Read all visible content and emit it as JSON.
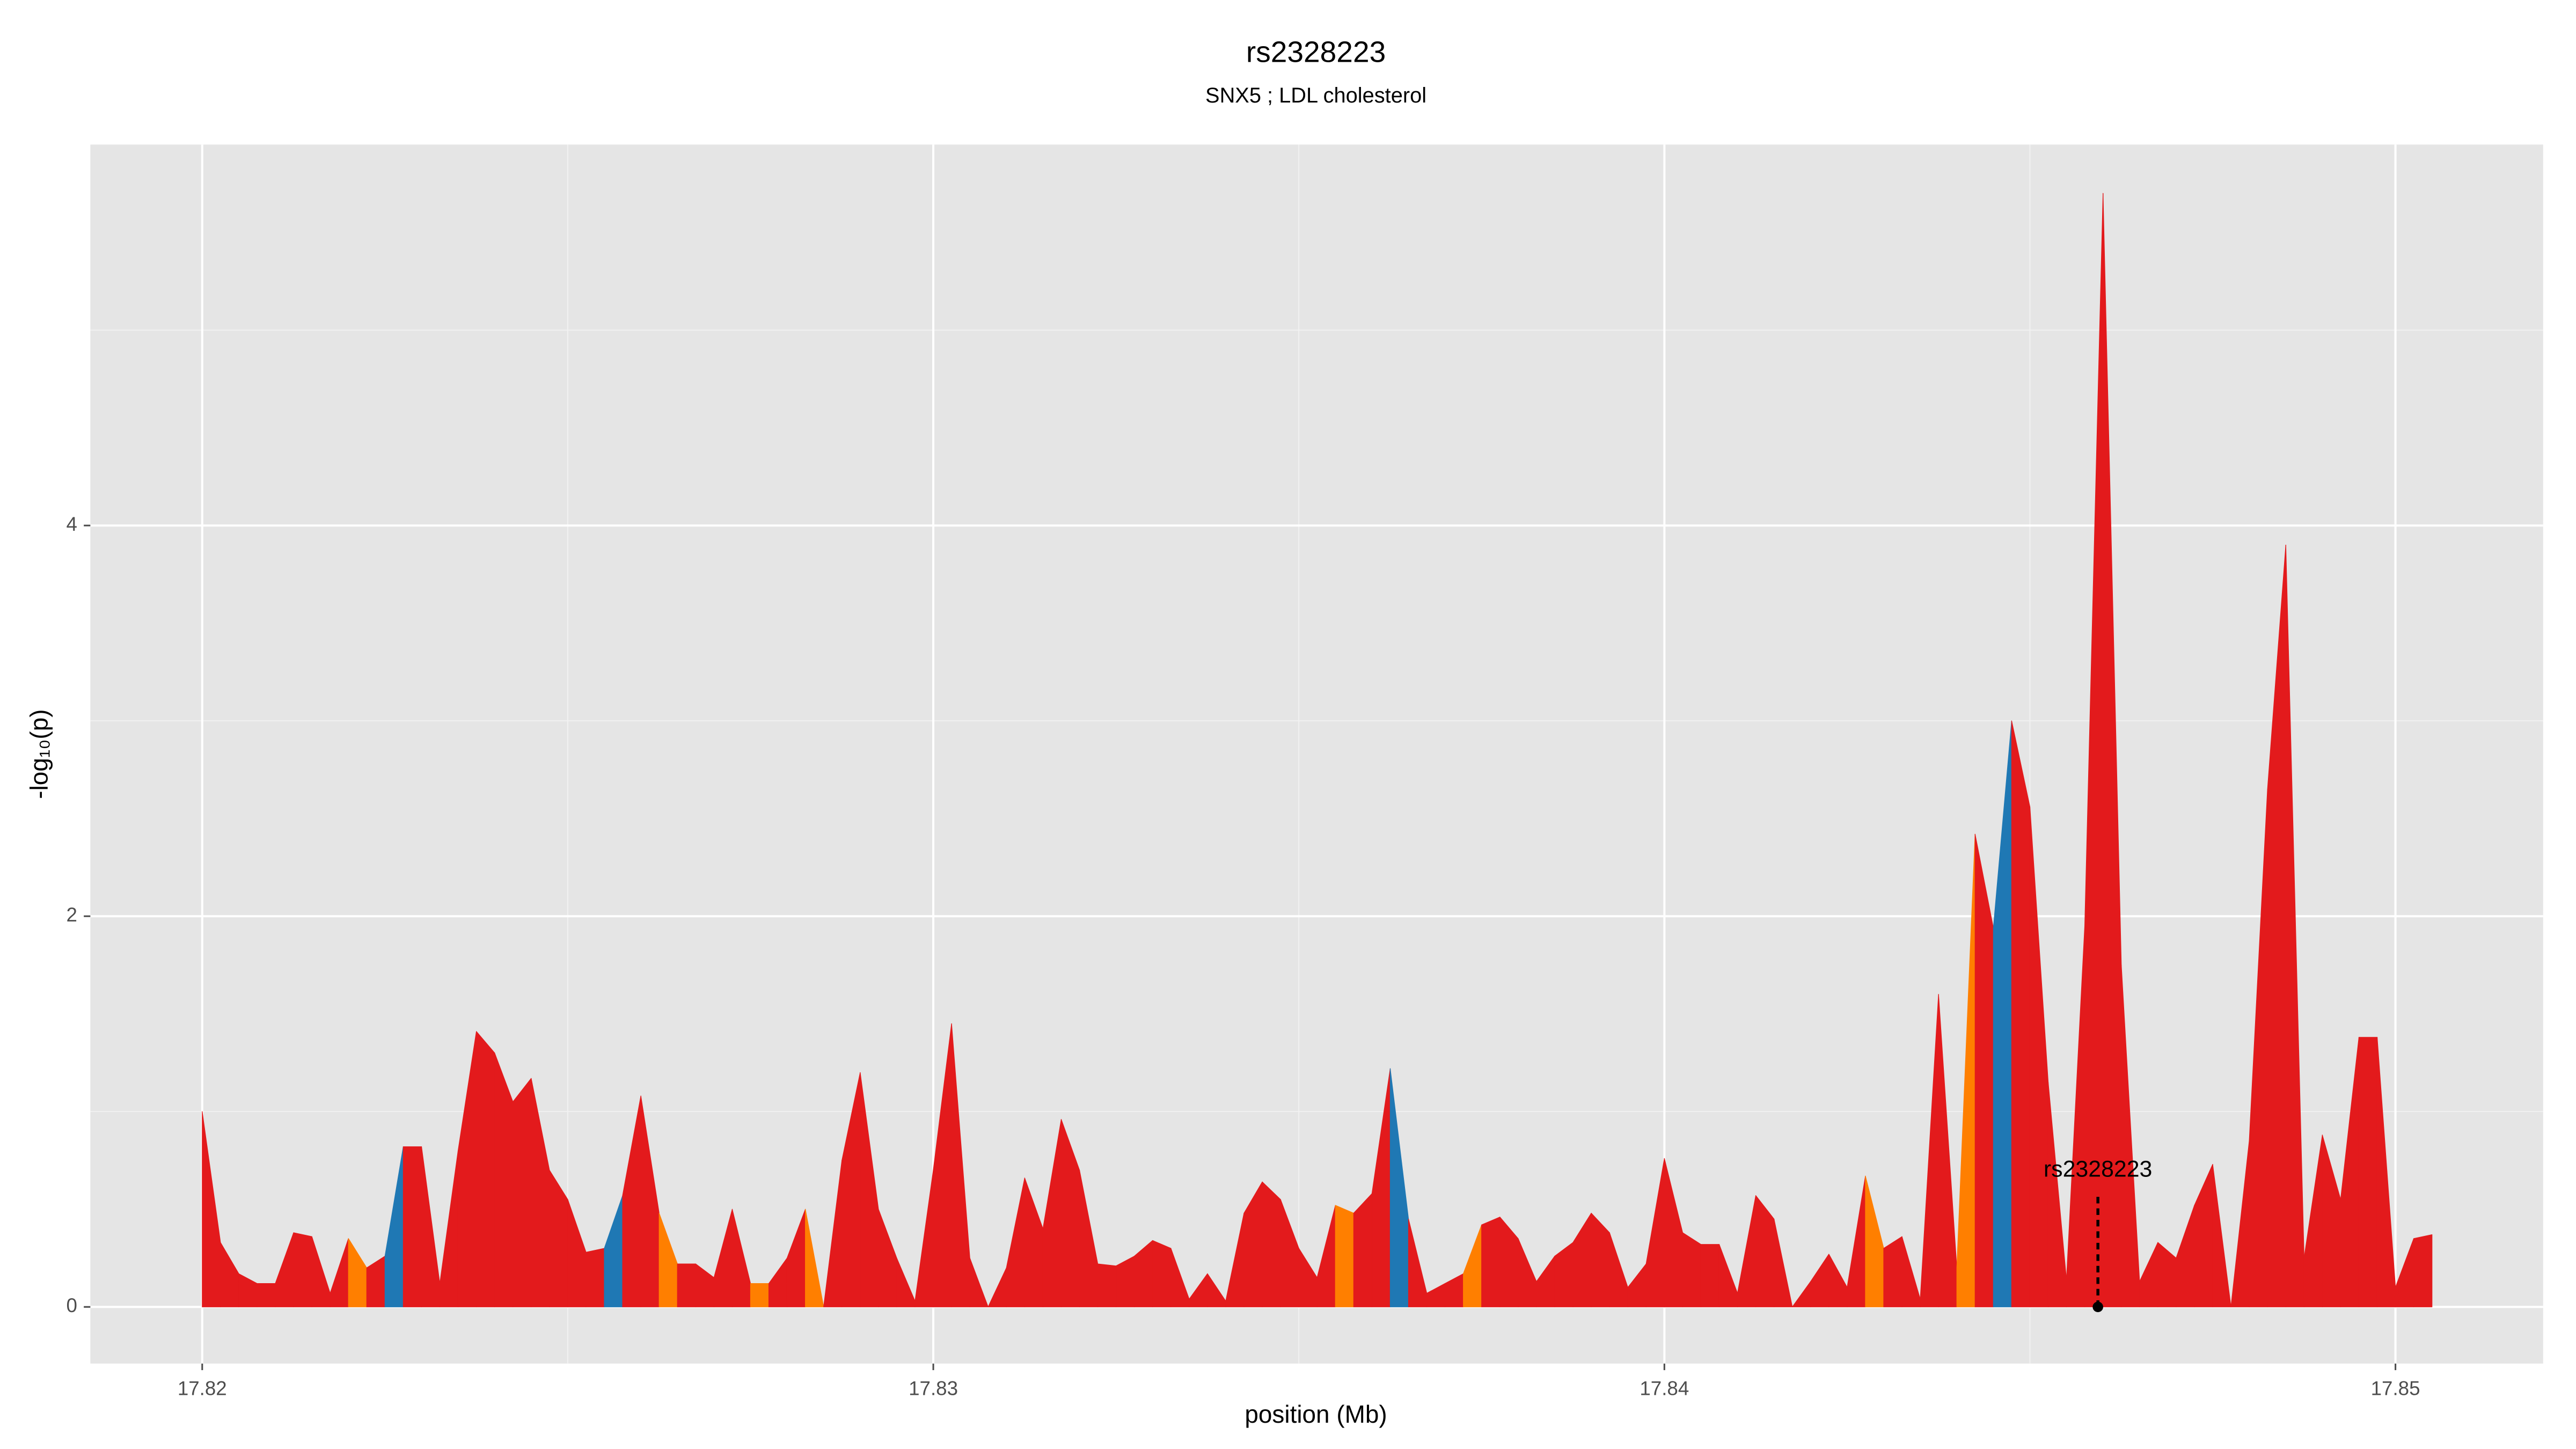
{
  "chart_data": {
    "type": "area",
    "title": "rs2328223",
    "subtitle": "SNX5 ; LDL cholesterol",
    "x_label": "position (Mb)",
    "y_label": "-log₁₀(p)",
    "xlim": [
      17.81847,
      17.85202
    ],
    "ylim": [
      -0.29,
      5.95
    ],
    "xticks": [
      17.82,
      17.83,
      17.84,
      17.85
    ],
    "yticks": [
      0,
      2,
      4
    ],
    "x_minor_grid": [
      17.825,
      17.835,
      17.845
    ],
    "y_minor_grid": [
      1,
      3,
      5
    ],
    "grid": true,
    "x": [
      17.82,
      17.82025,
      17.8205,
      17.82075,
      17.821,
      17.82125,
      17.8215,
      17.82175,
      17.822,
      17.82225,
      17.8225,
      17.82275,
      17.823,
      17.82325,
      17.8235,
      17.82375,
      17.824,
      17.82425,
      17.8245,
      17.82475,
      17.825,
      17.82525,
      17.8255,
      17.82575,
      17.826,
      17.82625,
      17.8265,
      17.82675,
      17.827,
      17.82725,
      17.8275,
      17.82775,
      17.828,
      17.82825,
      17.8285,
      17.82875,
      17.829,
      17.82925,
      17.8295,
      17.82975,
      17.83,
      17.83025,
      17.8305,
      17.83075,
      17.831,
      17.83125,
      17.8315,
      17.83175,
      17.832,
      17.83225,
      17.8325,
      17.83275,
      17.833,
      17.83325,
      17.8335,
      17.83375,
      17.834,
      17.83425,
      17.8345,
      17.83475,
      17.835,
      17.83525,
      17.8355,
      17.83575,
      17.836,
      17.83625,
      17.8365,
      17.83675,
      17.837,
      17.83725,
      17.8375,
      17.83775,
      17.838,
      17.83825,
      17.8385,
      17.83875,
      17.839,
      17.83925,
      17.8395,
      17.83975,
      17.84,
      17.84025,
      17.8405,
      17.84075,
      17.841,
      17.84125,
      17.8415,
      17.84175,
      17.842,
      17.84225,
      17.8425,
      17.84275,
      17.843,
      17.84325,
      17.8435,
      17.84375,
      17.844,
      17.84425,
      17.8445,
      17.84475,
      17.845,
      17.84525,
      17.8455,
      17.84575,
      17.846,
      17.84625,
      17.8465,
      17.84675,
      17.847,
      17.84725,
      17.8475,
      17.84775,
      17.848,
      17.84825,
      17.8485,
      17.84875,
      17.849,
      17.84925,
      17.8495,
      17.84975,
      17.85,
      17.85025,
      17.8505
    ],
    "values": [
      1.0,
      0.33,
      0.17,
      0.12,
      0.12,
      0.38,
      0.36,
      0.07,
      0.35,
      0.2,
      0.26,
      0.82,
      0.82,
      0.12,
      0.8,
      1.41,
      1.3,
      1.05,
      1.17,
      0.7,
      0.55,
      0.28,
      0.3,
      0.57,
      1.08,
      0.48,
      0.22,
      0.22,
      0.15,
      0.5,
      0.12,
      0.12,
      0.25,
      0.5,
      0.0,
      0.75,
      1.2,
      0.5,
      0.25,
      0.03,
      0.7,
      1.45,
      0.25,
      0.0,
      0.2,
      0.66,
      0.4,
      0.96,
      0.7,
      0.22,
      0.21,
      0.26,
      0.34,
      0.3,
      0.04,
      0.17,
      0.03,
      0.48,
      0.64,
      0.55,
      0.3,
      0.15,
      0.52,
      0.48,
      0.58,
      1.22,
      0.45,
      0.07,
      0.12,
      0.17,
      0.42,
      0.46,
      0.35,
      0.13,
      0.26,
      0.33,
      0.48,
      0.38,
      0.1,
      0.22,
      0.76,
      0.38,
      0.32,
      0.32,
      0.07,
      0.57,
      0.45,
      0.0,
      0.13,
      0.27,
      0.1,
      0.67,
      0.3,
      0.36,
      0.04,
      1.6,
      0.2,
      2.42,
      1.94,
      3.0,
      2.56,
      1.15,
      0.14,
      1.95,
      5.7,
      1.75,
      0.13,
      0.33,
      0.25,
      0.52,
      0.73,
      0.0,
      0.85,
      2.65,
      3.9,
      0.25,
      0.88,
      0.55,
      1.38,
      1.38,
      0.1,
      0.35,
      0.37
    ],
    "colors": [
      "#e31a1c",
      "#e31a1c",
      "#e31a1c",
      "#e31a1c",
      "#e31a1c",
      "#e31a1c",
      "#e31a1c",
      "#e31a1c",
      "#ff7f00",
      "#e31a1c",
      "#1f78b4",
      "#e31a1c",
      "#e31a1c",
      "#e31a1c",
      "#e31a1c",
      "#e31a1c",
      "#e31a1c",
      "#e31a1c",
      "#e31a1c",
      "#e31a1c",
      "#e31a1c",
      "#e31a1c",
      "#1f78b4",
      "#e31a1c",
      "#e31a1c",
      "#ff7f00",
      "#e31a1c",
      "#e31a1c",
      "#e31a1c",
      "#e31a1c",
      "#ff7f00",
      "#e31a1c",
      "#e31a1c",
      "#ff7f00",
      "#e31a1c",
      "#e31a1c",
      "#e31a1c",
      "#e31a1c",
      "#e31a1c",
      "#e31a1c",
      "#e31a1c",
      "#e31a1c",
      "#e31a1c",
      "#e31a1c",
      "#e31a1c",
      "#e31a1c",
      "#e31a1c",
      "#e31a1c",
      "#e31a1c",
      "#e31a1c",
      "#e31a1c",
      "#e31a1c",
      "#e31a1c",
      "#e31a1c",
      "#e31a1c",
      "#e31a1c",
      "#e31a1c",
      "#e31a1c",
      "#e31a1c",
      "#e31a1c",
      "#e31a1c",
      "#e31a1c",
      "#ff7f00",
      "#e31a1c",
      "#e31a1c",
      "#1f78b4",
      "#e31a1c",
      "#e31a1c",
      "#e31a1c",
      "#ff7f00",
      "#e31a1c",
      "#e31a1c",
      "#e31a1c",
      "#e31a1c",
      "#e31a1c",
      "#e31a1c",
      "#e31a1c",
      "#e31a1c",
      "#e31a1c",
      "#e31a1c",
      "#e31a1c",
      "#e31a1c",
      "#e31a1c",
      "#e31a1c",
      "#e31a1c",
      "#e31a1c",
      "#e31a1c",
      "#e31a1c",
      "#e31a1c",
      "#e31a1c",
      "#e31a1c",
      "#ff7f00",
      "#e31a1c",
      "#e31a1c",
      "#e31a1c",
      "#e31a1c",
      "#ff7f00",
      "#e31a1c",
      "#1f78b4",
      "#e31a1c",
      "#e31a1c",
      "#e31a1c",
      "#e31a1c",
      "#e31a1c",
      "#e31a1c",
      "#e31a1c",
      "#e31a1c",
      "#e31a1c",
      "#e31a1c",
      "#e31a1c",
      "#e31a1c",
      "#e31a1c",
      "#e31a1c",
      "#e31a1c",
      "#e31a1c",
      "#e31a1c",
      "#e31a1c",
      "#e31a1c",
      "#e31a1c",
      "#e31a1c",
      "#e31a1c",
      "#e31a1c",
      "#e31a1c"
    ],
    "annotation": {
      "text": "rs2328223",
      "x": 17.84593,
      "y": 0
    }
  }
}
